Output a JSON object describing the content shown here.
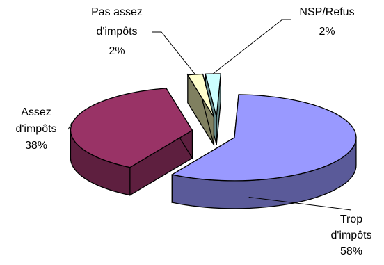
{
  "chart_data": {
    "type": "pie",
    "title": "",
    "legend": "none",
    "style": "3d-exploded",
    "slices": [
      {
        "label_lines": [
          "Trop",
          "d'impôts"
        ],
        "value": 58,
        "value_label": "58%",
        "color": "#9999ff",
        "side": "#5a5a99"
      },
      {
        "label_lines": [
          "Assez",
          "d'impôts"
        ],
        "value": 38,
        "value_label": "38%",
        "color": "#993366",
        "side": "#5e1f3f"
      },
      {
        "label_lines": [
          "Pas assez",
          "d'impôts"
        ],
        "value": 2,
        "value_label": "2%",
        "color": "#ffffcc",
        "side": "#808060"
      },
      {
        "label_lines": [
          "NSP/Refus"
        ],
        "value": 2,
        "value_label": "2%",
        "color": "#ccffff",
        "side": "#6a8f8f"
      }
    ]
  }
}
